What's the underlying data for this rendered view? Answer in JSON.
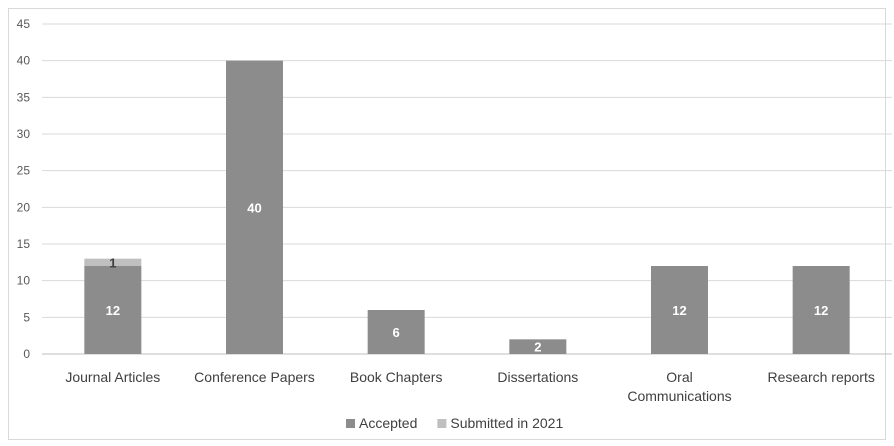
{
  "chart_data": {
    "type": "bar",
    "stacked": true,
    "title": "",
    "xlabel": "",
    "ylabel": "",
    "categories": [
      [
        "Journal Articles"
      ],
      [
        "Conference Papers"
      ],
      [
        "Book Chapters"
      ],
      [
        "Dissertations"
      ],
      [
        "Oral",
        "Communications"
      ],
      [
        "Research reports"
      ]
    ],
    "series": [
      {
        "name": "Accepted",
        "color": "#8c8c8c",
        "label_color": "#ffffff",
        "values": [
          12,
          40,
          6,
          2,
          12,
          12
        ]
      },
      {
        "name": "Submitted in 2021",
        "color": "#bfbfbf",
        "label_color": "#404040",
        "values": [
          1,
          0,
          0,
          0,
          0,
          0
        ]
      }
    ],
    "ylim": [
      0,
      45
    ],
    "yticks": [
      0,
      5,
      10,
      15,
      20,
      25,
      30,
      35,
      40,
      45
    ],
    "grid": true,
    "legend": "bottom-center"
  }
}
